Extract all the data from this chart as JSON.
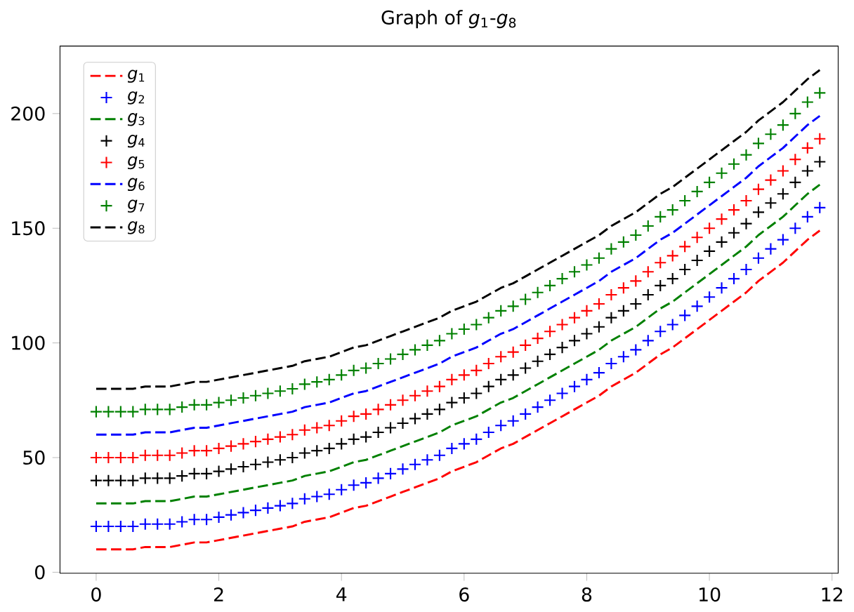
{
  "chart_data": {
    "type": "line",
    "title": "Graph of *g*$_{1}$-*g*$_{8}$",
    "x": [
      0,
      0.2,
      0.4,
      0.6,
      0.8,
      1.0,
      1.2,
      1.4,
      1.6,
      1.8,
      2.0,
      2.2,
      2.4,
      2.6,
      2.8,
      3.0,
      3.2,
      3.4,
      3.6,
      3.8,
      4.0,
      4.2,
      4.4,
      4.6,
      4.8,
      5.0,
      5.2,
      5.4,
      5.6,
      5.8,
      6.0,
      6.2,
      6.4,
      6.6,
      6.8,
      7.0,
      7.2,
      7.4,
      7.6,
      7.8,
      8.0,
      8.2,
      8.4,
      8.6,
      8.8,
      9.0,
      9.2,
      9.4,
      9.6,
      9.8,
      10.0,
      10.2,
      10.4,
      10.6,
      10.8,
      11.0,
      11.2,
      11.4,
      11.6,
      11.8
    ],
    "series": [
      {
        "name": "*g*$_{1}$",
        "line_style": "dashed",
        "color": "#ff0000",
        "values": [
          10,
          10,
          10,
          10,
          11,
          11,
          11,
          12,
          13,
          13,
          14,
          15,
          16,
          17,
          18,
          19,
          20,
          22,
          23,
          24,
          26,
          28,
          29,
          31,
          33,
          35,
          37,
          39,
          41,
          44,
          46,
          48,
          51,
          54,
          56,
          59,
          62,
          65,
          68,
          71,
          74,
          77,
          81,
          84,
          87,
          91,
          95,
          98,
          102,
          106,
          110,
          114,
          118,
          122,
          127,
          131,
          135,
          140,
          145,
          149
        ]
      },
      {
        "name": "*g*$_{2}$",
        "type": "scatter",
        "marker": "cross",
        "color": "#0000ff",
        "values": [
          20,
          20,
          20,
          20,
          21,
          21,
          21,
          22,
          23,
          23,
          24,
          25,
          26,
          27,
          28,
          29,
          30,
          32,
          33,
          34,
          36,
          38,
          39,
          41,
          43,
          45,
          47,
          49,
          51,
          54,
          56,
          58,
          61,
          64,
          66,
          69,
          72,
          75,
          78,
          81,
          84,
          87,
          91,
          94,
          97,
          101,
          105,
          108,
          112,
          116,
          120,
          124,
          128,
          132,
          137,
          141,
          145,
          150,
          155,
          159
        ]
      },
      {
        "name": "*g*$_{3}$",
        "line_style": "dashed",
        "color": "#008000",
        "values": [
          30,
          30,
          30,
          30,
          31,
          31,
          31,
          32,
          33,
          33,
          34,
          35,
          36,
          37,
          38,
          39,
          40,
          42,
          43,
          44,
          46,
          48,
          49,
          51,
          53,
          55,
          57,
          59,
          61,
          64,
          66,
          68,
          71,
          74,
          76,
          79,
          82,
          85,
          88,
          91,
          94,
          97,
          101,
          104,
          107,
          111,
          115,
          118,
          122,
          126,
          130,
          134,
          138,
          142,
          147,
          151,
          155,
          160,
          165,
          169
        ]
      },
      {
        "name": "*g*$_{4}$",
        "type": "scatter",
        "marker": "cross",
        "color": "#000000",
        "values": [
          40,
          40,
          40,
          40,
          41,
          41,
          41,
          42,
          43,
          43,
          44,
          45,
          46,
          47,
          48,
          49,
          50,
          52,
          53,
          54,
          56,
          58,
          59,
          61,
          63,
          65,
          67,
          69,
          71,
          74,
          76,
          78,
          81,
          84,
          86,
          89,
          92,
          95,
          98,
          101,
          104,
          107,
          111,
          114,
          117,
          121,
          125,
          128,
          132,
          136,
          140,
          144,
          148,
          152,
          157,
          161,
          165,
          170,
          175,
          179
        ]
      },
      {
        "name": "*g*$_{5}$",
        "type": "scatter",
        "marker": "cross",
        "color": "#ff0000",
        "values": [
          50,
          50,
          50,
          50,
          51,
          51,
          51,
          52,
          53,
          53,
          54,
          55,
          56,
          57,
          58,
          59,
          60,
          62,
          63,
          64,
          66,
          68,
          69,
          71,
          73,
          75,
          77,
          79,
          81,
          84,
          86,
          88,
          91,
          94,
          96,
          99,
          102,
          105,
          108,
          111,
          114,
          117,
          121,
          124,
          127,
          131,
          135,
          138,
          142,
          146,
          150,
          154,
          158,
          162,
          167,
          171,
          175,
          180,
          185,
          189
        ]
      },
      {
        "name": "*g*$_{6}$",
        "line_style": "dashed",
        "color": "#0000ff",
        "values": [
          60,
          60,
          60,
          60,
          61,
          61,
          61,
          62,
          63,
          63,
          64,
          65,
          66,
          67,
          68,
          69,
          70,
          72,
          73,
          74,
          76,
          78,
          79,
          81,
          83,
          85,
          87,
          89,
          91,
          94,
          96,
          98,
          101,
          104,
          106,
          109,
          112,
          115,
          118,
          121,
          124,
          127,
          131,
          134,
          137,
          141,
          145,
          148,
          152,
          156,
          160,
          164,
          168,
          172,
          177,
          181,
          185,
          190,
          195,
          199
        ]
      },
      {
        "name": "*g*$_{7}$",
        "type": "scatter",
        "marker": "cross",
        "color": "#008000",
        "values": [
          70,
          70,
          70,
          70,
          71,
          71,
          71,
          72,
          73,
          73,
          74,
          75,
          76,
          77,
          78,
          79,
          80,
          82,
          83,
          84,
          86,
          88,
          89,
          91,
          93,
          95,
          97,
          99,
          101,
          104,
          106,
          108,
          111,
          114,
          116,
          119,
          122,
          125,
          128,
          131,
          134,
          137,
          141,
          144,
          147,
          151,
          155,
          158,
          162,
          166,
          170,
          174,
          178,
          182,
          187,
          191,
          195,
          200,
          205,
          209
        ]
      },
      {
        "name": "*g*$_{8}$",
        "line_style": "dashed",
        "color": "#000000",
        "values": [
          80,
          80,
          80,
          80,
          81,
          81,
          81,
          82,
          83,
          83,
          84,
          85,
          86,
          87,
          88,
          89,
          90,
          92,
          93,
          94,
          96,
          98,
          99,
          101,
          103,
          105,
          107,
          109,
          111,
          114,
          116,
          118,
          121,
          124,
          126,
          129,
          132,
          135,
          138,
          141,
          144,
          147,
          151,
          154,
          157,
          161,
          165,
          168,
          172,
          176,
          180,
          184,
          188,
          192,
          197,
          201,
          205,
          210,
          215,
          219
        ]
      }
    ],
    "xlim": [
      -0.59,
      12.1
    ],
    "ylim": [
      -0.45,
      229.45
    ],
    "xticks": [
      0,
      2,
      4,
      6,
      8,
      10,
      12
    ],
    "yticks": [
      0,
      50,
      100,
      150,
      200
    ],
    "legend": "top left",
    "grid": false
  }
}
